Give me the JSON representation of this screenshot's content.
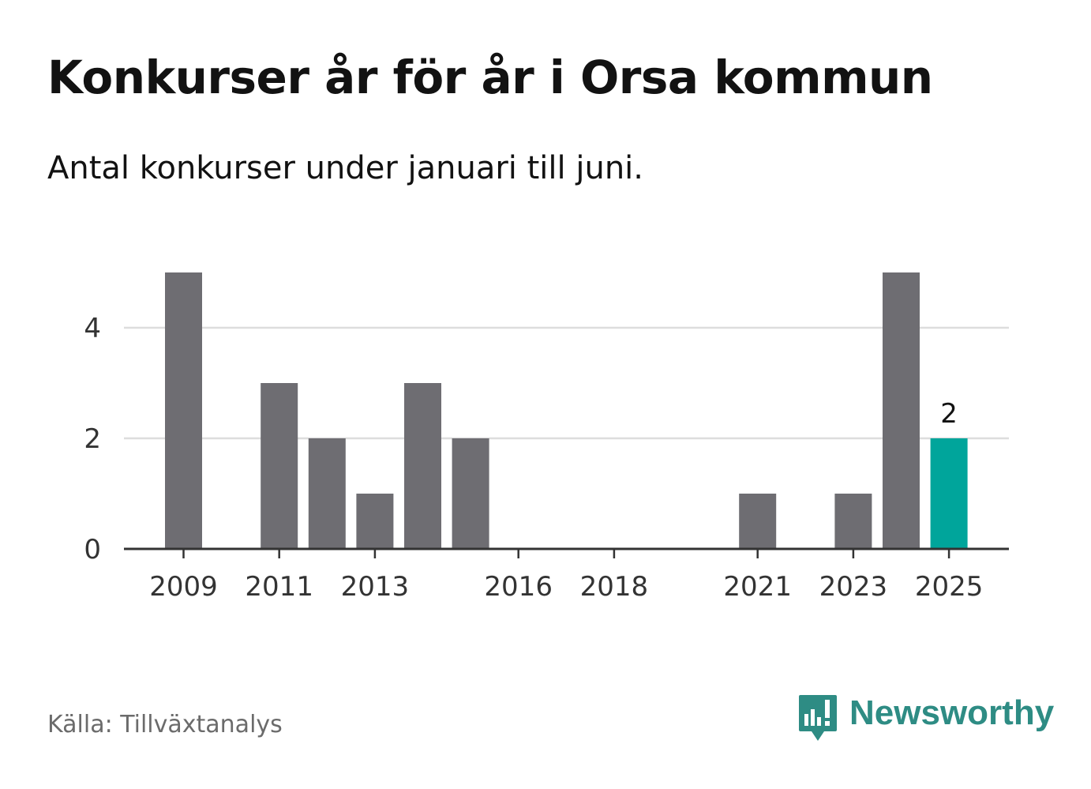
{
  "title": "Konkurser år för år i Orsa kommun",
  "subtitle": "Antal konkurser under januari till juni.",
  "source": "Källa: Tillväxtanalys",
  "brand": {
    "name": "Newsworthy",
    "logo_icon": "bar-chart-speech-bubble-icon",
    "color": "#2e8c84"
  },
  "chart_data": {
    "type": "bar",
    "x": [
      2009,
      2010,
      2011,
      2012,
      2013,
      2014,
      2015,
      2016,
      2017,
      2018,
      2019,
      2020,
      2021,
      2022,
      2023,
      2024,
      2025
    ],
    "values": [
      5,
      0,
      3,
      2,
      1,
      3,
      2,
      0,
      0,
      0,
      0,
      0,
      1,
      0,
      1,
      5,
      2
    ],
    "x_tick_labels": [
      "2009",
      "2011",
      "2013",
      "2016",
      "2018",
      "2021",
      "2023",
      "2025"
    ],
    "y_ticks": [
      0,
      2,
      4
    ],
    "ylim": [
      0,
      5
    ],
    "grid": true,
    "highlight": {
      "x": 2025,
      "label": "2"
    },
    "colors": {
      "bar": "#6e6d72",
      "highlight": "#00a59b",
      "grid": "#dddddd",
      "axis": "#333333"
    }
  }
}
